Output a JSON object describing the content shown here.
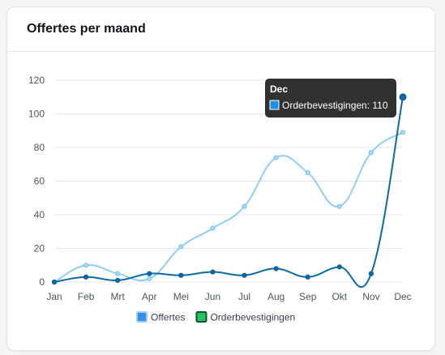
{
  "card": {
    "title": "Offertes per maand"
  },
  "chart_data": {
    "type": "line",
    "title": "",
    "xlabel": "",
    "ylabel": "",
    "categories": [
      "Jan",
      "Feb",
      "Mrt",
      "Apr",
      "Mei",
      "Jun",
      "Jul",
      "Aug",
      "Sep",
      "Okt",
      "Nov",
      "Dec"
    ],
    "ylim": [
      0,
      120
    ],
    "yticks": [
      0,
      20,
      40,
      60,
      80,
      100,
      120
    ],
    "grid": true,
    "legend_position": "bottom",
    "series": [
      {
        "name": "Offertes",
        "color": "#90cdf4",
        "values": [
          0,
          10,
          5,
          2,
          21,
          32,
          45,
          74,
          65,
          45,
          77,
          89
        ]
      },
      {
        "name": "Orderbevestigingen",
        "color": "#0b6aa8",
        "values": [
          0,
          3,
          1,
          5,
          4,
          6,
          4,
          8,
          3,
          9,
          5,
          110
        ]
      }
    ],
    "legend": [
      {
        "label": "Offertes",
        "swatch_fill": "#3b8ee8",
        "swatch_border": "#9ccdf2"
      },
      {
        "label": "Orderbevestigingen",
        "swatch_fill": "#22c55e",
        "swatch_border": "#15532e"
      }
    ],
    "tooltip": {
      "title": "Dec",
      "label": "Orderbevestigingen: 110",
      "swatch_color": "#1e90e8",
      "category_index": 11,
      "series_index": 1
    }
  }
}
